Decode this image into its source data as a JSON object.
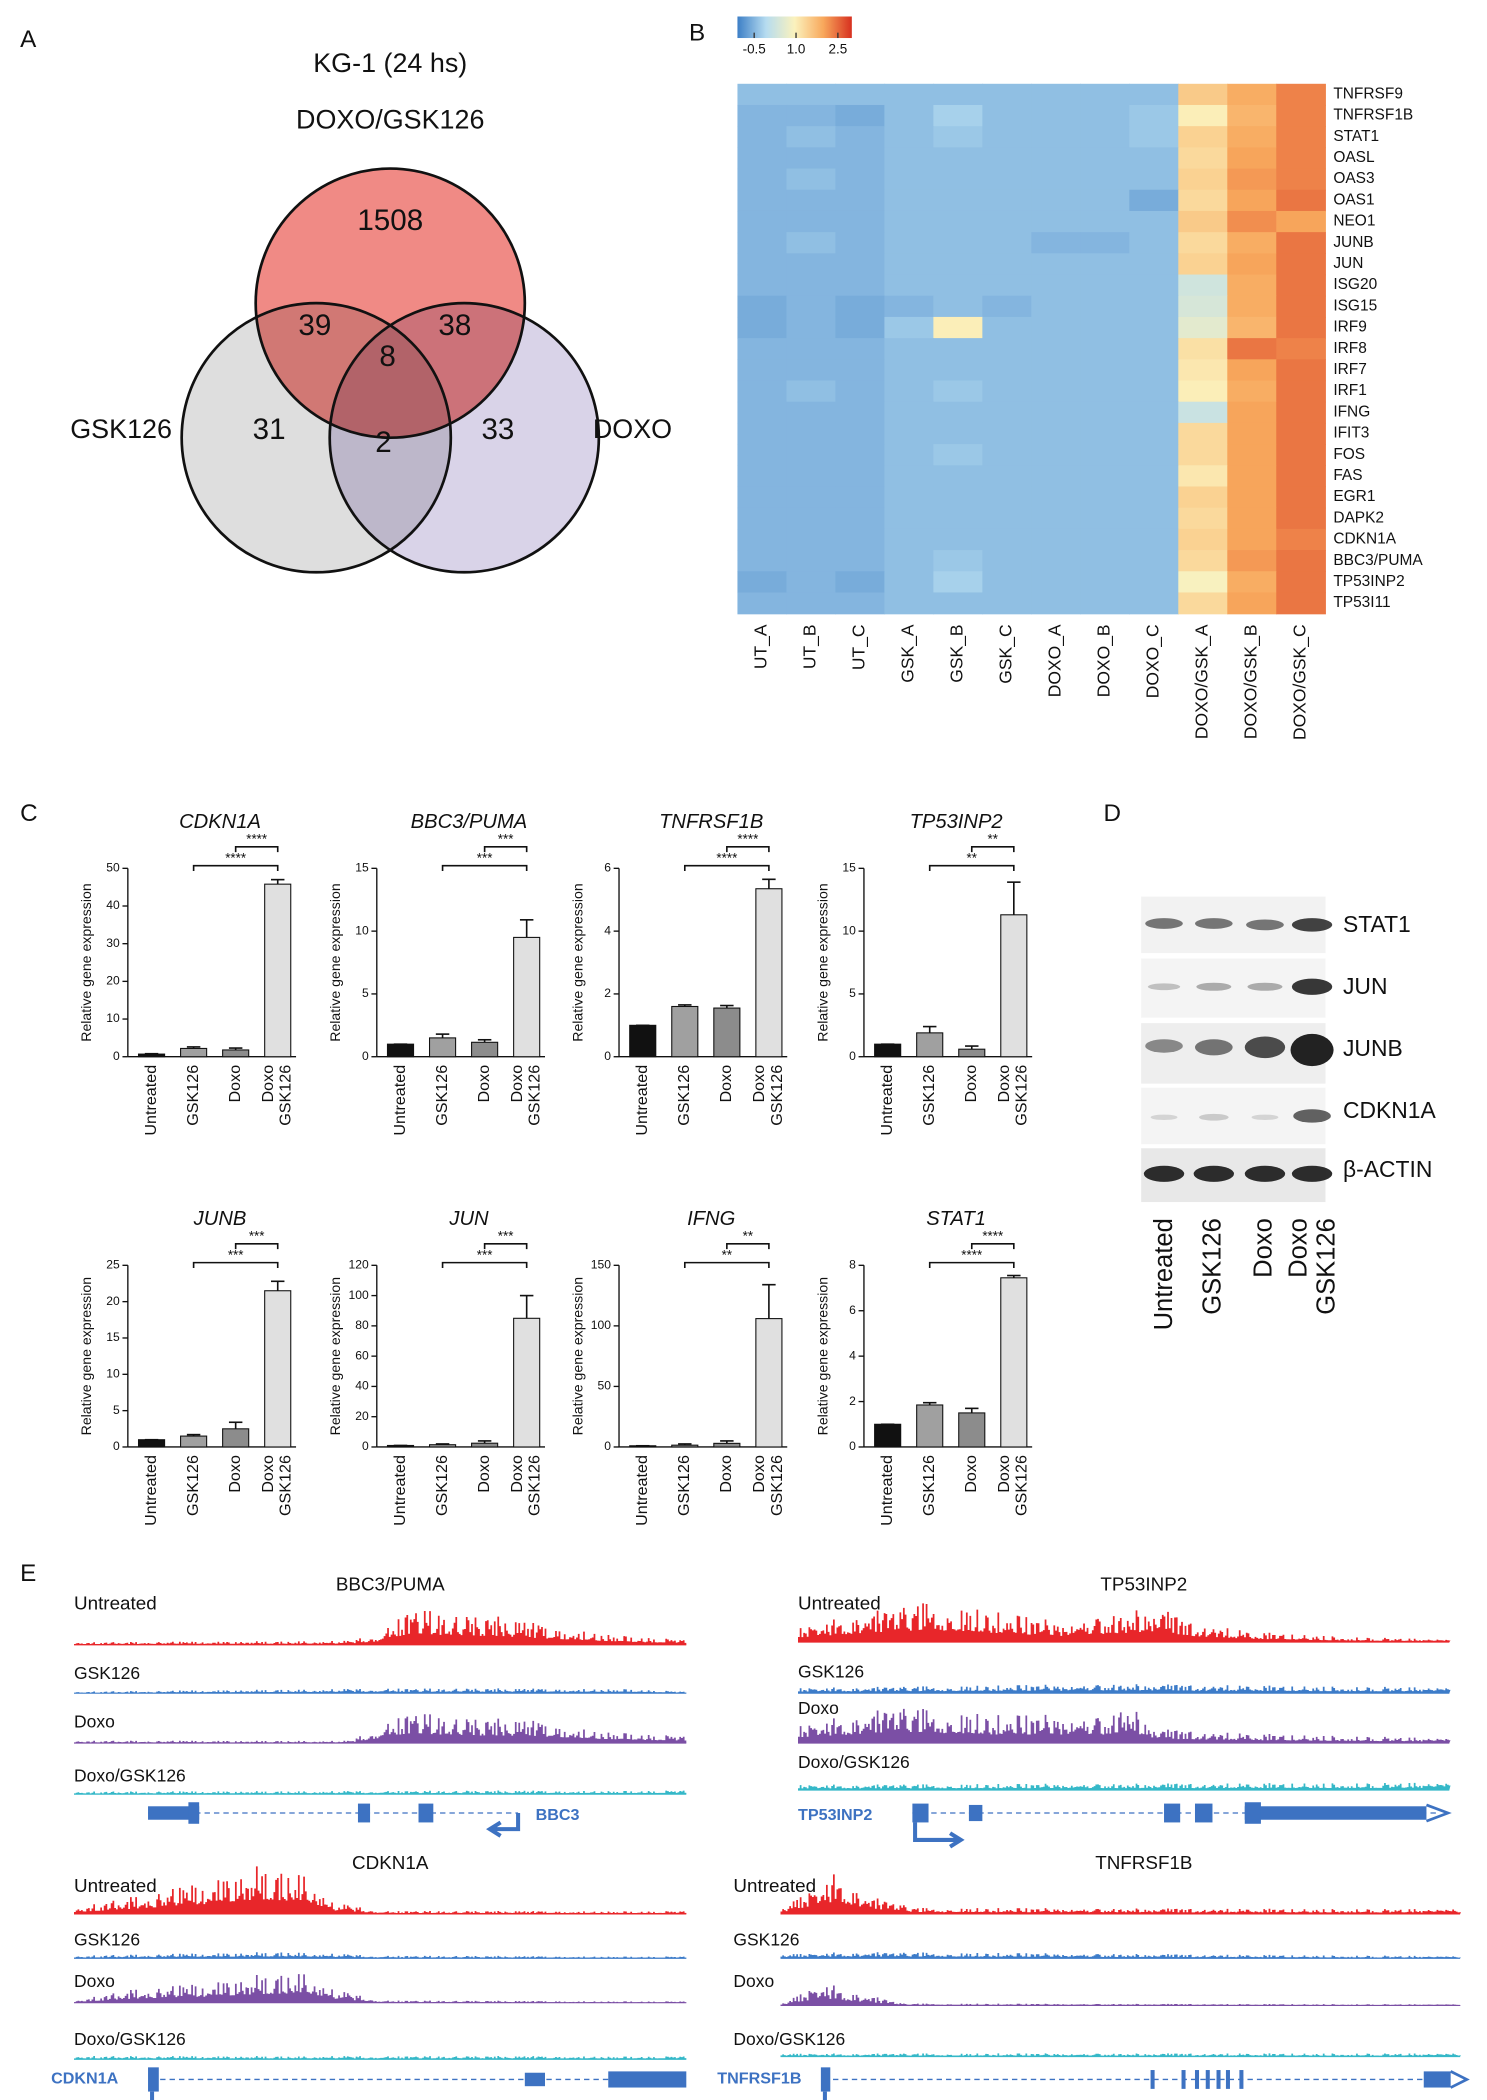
{
  "panel_labels": [
    "A",
    "B",
    "C",
    "D",
    "E"
  ],
  "chart_data": [
    {
      "type": "venn",
      "title": "KG-1 (24 hs)",
      "sets": [
        "DOXO/GSK126",
        "GSK126",
        "DOXO"
      ],
      "colors": [
        "#f08a85",
        "#dedede",
        "#d9d3e8"
      ],
      "regions": [
        {
          "sets": [
            0
          ],
          "value": 1508
        },
        {
          "sets": [
            0,
            1
          ],
          "value": 39
        },
        {
          "sets": [
            0,
            2
          ],
          "value": 38
        },
        {
          "sets": [
            0,
            1,
            2
          ],
          "value": 8
        },
        {
          "sets": [
            1
          ],
          "value": 31
        },
        {
          "sets": [
            1,
            2
          ],
          "value": 2
        },
        {
          "sets": [
            2
          ],
          "value": 33
        }
      ]
    },
    {
      "type": "heatmap",
      "columns": [
        "UT_A",
        "UT_B",
        "UT_C",
        "GSK_A",
        "GSK_B",
        "GSK_C",
        "DOXO_A",
        "DOXO_B",
        "DOXO_C",
        "DOXO/GSK_A",
        "DOXO/GSK_B",
        "DOXO/GSK_C"
      ],
      "rows": [
        "TNFRSF9",
        "TNFRSF1B",
        "STAT1",
        "OASL",
        "OAS3",
        "OAS1",
        "NEO1",
        "JUNB",
        "JUN",
        "ISG20",
        "ISG15",
        "IRF9",
        "IRF8",
        "IRF7",
        "IRF1",
        "IFNG",
        "IFIT3",
        "FOS",
        "FAS",
        "EGR1",
        "DAPK2",
        "CDKN1A",
        "BBC3/PUMA",
        "TP53INP2",
        "TP53I11"
      ],
      "row_label_colors": [
        "#111111",
        "#e8202a",
        "#111111",
        "#111111",
        "#111111",
        "#111111",
        "#e8202a",
        "#e8202a",
        "#e8202a",
        "#111111",
        "#111111",
        "#111111",
        "#111111",
        "#111111",
        "#111111",
        "#111111",
        "#111111",
        "#e8202a",
        "#111111",
        "#111111",
        "#e8202a",
        "#e8202a",
        "#e8202a",
        "#e8202a",
        "#e8202a"
      ],
      "values": [
        [
          -0.4,
          -0.4,
          -0.4,
          -0.4,
          -0.4,
          -0.4,
          -0.4,
          -0.4,
          -0.4,
          1.5,
          1.9,
          2.3
        ],
        [
          -0.5,
          -0.5,
          -0.6,
          -0.4,
          -0.2,
          -0.4,
          -0.4,
          -0.4,
          -0.3,
          1.0,
          1.8,
          2.3
        ],
        [
          -0.5,
          -0.4,
          -0.5,
          -0.4,
          -0.3,
          -0.4,
          -0.4,
          -0.4,
          -0.3,
          1.4,
          1.9,
          2.3
        ],
        [
          -0.5,
          -0.5,
          -0.5,
          -0.4,
          -0.4,
          -0.4,
          -0.4,
          -0.4,
          -0.4,
          1.3,
          2.0,
          2.3
        ],
        [
          -0.5,
          -0.4,
          -0.5,
          -0.4,
          -0.4,
          -0.4,
          -0.4,
          -0.4,
          -0.4,
          1.4,
          2.1,
          2.3
        ],
        [
          -0.5,
          -0.5,
          -0.5,
          -0.4,
          -0.4,
          -0.4,
          -0.4,
          -0.4,
          -0.6,
          1.3,
          2.0,
          2.4
        ],
        [
          -0.5,
          -0.5,
          -0.5,
          -0.4,
          -0.4,
          -0.4,
          -0.4,
          -0.4,
          -0.4,
          1.5,
          2.2,
          2.0
        ],
        [
          -0.5,
          -0.4,
          -0.5,
          -0.4,
          -0.4,
          -0.4,
          -0.5,
          -0.5,
          -0.4,
          1.3,
          1.9,
          2.4
        ],
        [
          -0.5,
          -0.5,
          -0.5,
          -0.4,
          -0.4,
          -0.4,
          -0.4,
          -0.4,
          -0.4,
          1.4,
          2.0,
          2.4
        ],
        [
          -0.5,
          -0.5,
          -0.5,
          -0.4,
          -0.4,
          -0.4,
          -0.4,
          -0.4,
          -0.4,
          0.3,
          1.9,
          2.4
        ],
        [
          -0.6,
          -0.5,
          -0.6,
          -0.5,
          -0.4,
          -0.5,
          -0.4,
          -0.4,
          -0.4,
          0.4,
          1.9,
          2.4
        ],
        [
          -0.6,
          -0.5,
          -0.6,
          -0.3,
          1.0,
          -0.4,
          -0.4,
          -0.4,
          -0.4,
          0.6,
          1.8,
          2.4
        ],
        [
          -0.5,
          -0.5,
          -0.5,
          -0.4,
          -0.4,
          -0.4,
          -0.4,
          -0.4,
          -0.4,
          1.2,
          2.4,
          2.3
        ],
        [
          -0.5,
          -0.5,
          -0.5,
          -0.4,
          -0.4,
          -0.4,
          -0.4,
          -0.4,
          -0.4,
          1.1,
          2.0,
          2.4
        ],
        [
          -0.5,
          -0.4,
          -0.5,
          -0.4,
          -0.3,
          -0.4,
          -0.4,
          -0.4,
          -0.4,
          1.0,
          1.9,
          2.4
        ],
        [
          -0.5,
          -0.5,
          -0.5,
          -0.4,
          -0.4,
          -0.4,
          -0.4,
          -0.4,
          -0.4,
          0.2,
          2.0,
          2.4
        ],
        [
          -0.5,
          -0.5,
          -0.5,
          -0.4,
          -0.4,
          -0.4,
          -0.4,
          -0.4,
          -0.4,
          1.3,
          2.0,
          2.4
        ],
        [
          -0.5,
          -0.5,
          -0.5,
          -0.4,
          -0.3,
          -0.4,
          -0.4,
          -0.4,
          -0.4,
          1.3,
          2.0,
          2.4
        ],
        [
          -0.5,
          -0.5,
          -0.5,
          -0.4,
          -0.4,
          -0.4,
          -0.4,
          -0.4,
          -0.4,
          1.1,
          2.0,
          2.4
        ],
        [
          -0.5,
          -0.5,
          -0.5,
          -0.4,
          -0.4,
          -0.4,
          -0.4,
          -0.4,
          -0.4,
          1.4,
          2.0,
          2.4
        ],
        [
          -0.5,
          -0.5,
          -0.5,
          -0.4,
          -0.4,
          -0.4,
          -0.4,
          -0.4,
          -0.4,
          1.3,
          2.0,
          2.4
        ],
        [
          -0.5,
          -0.5,
          -0.5,
          -0.4,
          -0.4,
          -0.4,
          -0.4,
          -0.4,
          -0.4,
          1.4,
          2.0,
          2.3
        ],
        [
          -0.5,
          -0.5,
          -0.5,
          -0.4,
          -0.3,
          -0.4,
          -0.4,
          -0.4,
          -0.4,
          1.3,
          2.1,
          2.4
        ],
        [
          -0.6,
          -0.5,
          -0.6,
          -0.4,
          -0.2,
          -0.4,
          -0.4,
          -0.4,
          -0.4,
          0.9,
          1.9,
          2.4
        ],
        [
          -0.5,
          -0.5,
          -0.5,
          -0.4,
          -0.4,
          -0.4,
          -0.4,
          -0.4,
          -0.4,
          1.3,
          2.0,
          2.4
        ]
      ],
      "clim": [
        -1.1,
        3.0
      ],
      "colorbar_ticks": [
        -0.5,
        {
          "value": 1,
          "label": "1.0"
        },
        2.5
      ],
      "colormap": [
        "#3d7fc6",
        "#b6dcf0",
        "#fbf2bd",
        "#f8a85c",
        "#d7301f"
      ]
    },
    {
      "type": "bar",
      "title": "CDKN1A",
      "title_color": "#e8202a",
      "ylabel": "Relative gene expression",
      "categories": [
        "Untreated",
        "GSK126",
        "Doxo",
        "Doxo\nGSK126"
      ],
      "colors": [
        "#111111",
        "#a0a0a0",
        "#8c8c8c",
        "#e0e0e0"
      ],
      "values": [
        0.7,
        2.2,
        1.8,
        45.8
      ],
      "errors": [
        0.1,
        0.4,
        0.5,
        1.2
      ],
      "ylim": [
        0,
        50
      ],
      "yticks": [
        0,
        10,
        20,
        30,
        40,
        50
      ],
      "brackets": [
        {
          "from": 1,
          "to": 3,
          "label": "****"
        },
        {
          "from": 2,
          "to": 3,
          "label": "****"
        }
      ]
    },
    {
      "type": "bar",
      "title": "BBC3/PUMA",
      "title_color": "#e8202a",
      "ylabel": "Relative gene expression",
      "categories": [
        "Untreated",
        "GSK126",
        "Doxo",
        "Doxo\nGSK126"
      ],
      "colors": [
        "#111111",
        "#a0a0a0",
        "#8c8c8c",
        "#e0e0e0"
      ],
      "values": [
        1,
        1.5,
        1.15,
        9.5
      ],
      "errors": [
        0,
        0.3,
        0.2,
        1.4
      ],
      "ylim": [
        0,
        15
      ],
      "yticks": [
        0,
        5,
        10,
        15
      ],
      "brackets": [
        {
          "from": 1,
          "to": 3,
          "label": "***"
        },
        {
          "from": 2,
          "to": 3,
          "label": "***"
        }
      ]
    },
    {
      "type": "bar",
      "title": "TNFRSF1B",
      "title_color": "#e8202a",
      "ylabel": "Relative gene expression",
      "categories": [
        "Untreated",
        "GSK126",
        "Doxo",
        "Doxo\nGSK126"
      ],
      "colors": [
        "#111111",
        "#a0a0a0",
        "#8c8c8c",
        "#e0e0e0"
      ],
      "values": [
        1,
        1.6,
        1.55,
        5.35
      ],
      "errors": [
        0,
        0.05,
        0.08,
        0.3
      ],
      "ylim": [
        0,
        6
      ],
      "yticks": [
        0,
        2,
        4,
        6
      ],
      "brackets": [
        {
          "from": 1,
          "to": 3,
          "label": "****"
        },
        {
          "from": 2,
          "to": 3,
          "label": "****"
        }
      ]
    },
    {
      "type": "bar",
      "title": "TP53INP2",
      "title_color": "#e8202a",
      "ylabel": "Relative gene expression",
      "categories": [
        "Untreated",
        "GSK126",
        "Doxo",
        "Doxo\nGSK126"
      ],
      "colors": [
        "#111111",
        "#a0a0a0",
        "#8c8c8c",
        "#e0e0e0"
      ],
      "values": [
        1,
        1.9,
        0.6,
        11.3
      ],
      "errors": [
        0,
        0.5,
        0.25,
        2.6
      ],
      "ylim": [
        0,
        15
      ],
      "yticks": [
        0,
        5,
        10,
        15
      ],
      "brackets": [
        {
          "from": 1,
          "to": 3,
          "label": "**"
        },
        {
          "from": 2,
          "to": 3,
          "label": "**"
        }
      ]
    },
    {
      "type": "bar",
      "title": "JUNB",
      "title_color": "#e8202a",
      "ylabel": "Relative gene expression",
      "categories": [
        "Untreated",
        "GSK126",
        "Doxo",
        "Doxo\nGSK126"
      ],
      "colors": [
        "#111111",
        "#a0a0a0",
        "#8c8c8c",
        "#e0e0e0"
      ],
      "values": [
        1,
        1.5,
        2.5,
        21.5
      ],
      "errors": [
        0,
        0.2,
        0.9,
        1.3
      ],
      "ylim": [
        0,
        25
      ],
      "yticks": [
        0,
        5,
        10,
        15,
        20,
        25
      ],
      "brackets": [
        {
          "from": 1,
          "to": 3,
          "label": "***"
        },
        {
          "from": 2,
          "to": 3,
          "label": "***"
        }
      ]
    },
    {
      "type": "bar",
      "title": "JUN",
      "title_color": "#e8202a",
      "ylabel": "Relative gene expression",
      "categories": [
        "Untreated",
        "GSK126",
        "Doxo",
        "Doxo\nGSK126"
      ],
      "colors": [
        "#111111",
        "#a0a0a0",
        "#8c8c8c",
        "#e0e0e0"
      ],
      "values": [
        1,
        1.5,
        2.5,
        85
      ],
      "errors": [
        0,
        0.5,
        1.5,
        15
      ],
      "ylim": [
        0,
        120
      ],
      "yticks": [
        0,
        20,
        40,
        60,
        80,
        100,
        120
      ],
      "brackets": [
        {
          "from": 1,
          "to": 3,
          "label": "***"
        },
        {
          "from": 2,
          "to": 3,
          "label": "***"
        }
      ]
    },
    {
      "type": "bar",
      "title": "IFNG",
      "title_color": "#111111",
      "ylabel": "Relative gene expression",
      "categories": [
        "Untreated",
        "GSK126",
        "Doxo",
        "Doxo\nGSK126"
      ],
      "colors": [
        "#111111",
        "#a0a0a0",
        "#8c8c8c",
        "#e0e0e0"
      ],
      "values": [
        1,
        1.5,
        3,
        106
      ],
      "errors": [
        0,
        1,
        2,
        28
      ],
      "ylim": [
        0,
        150
      ],
      "yticks": [
        0,
        50,
        100,
        150
      ],
      "brackets": [
        {
          "from": 1,
          "to": 3,
          "label": "**"
        },
        {
          "from": 2,
          "to": 3,
          "label": "**"
        }
      ]
    },
    {
      "type": "bar",
      "title": "STAT1",
      "title_color": "#111111",
      "ylabel": "Relative gene expression",
      "categories": [
        "Untreated",
        "GSK126",
        "Doxo",
        "Doxo\nGSK126"
      ],
      "colors": [
        "#111111",
        "#a0a0a0",
        "#8c8c8c",
        "#e0e0e0"
      ],
      "values": [
        1,
        1.85,
        1.5,
        7.45
      ],
      "errors": [
        0,
        0.1,
        0.2,
        0.1
      ],
      "ylim": [
        0,
        8
      ],
      "yticks": [
        0,
        2,
        4,
        6,
        8
      ],
      "brackets": [
        {
          "from": 1,
          "to": 3,
          "label": "****"
        },
        {
          "from": 2,
          "to": 3,
          "label": "****"
        }
      ]
    }
  ],
  "western_blot": {
    "proteins": [
      "STAT1",
      "JUN",
      "JUNB",
      "CDKN1A",
      "β-ACTIN"
    ],
    "lanes": [
      "Untreated",
      "GSK126",
      "Doxo",
      "Doxo\nGSK126"
    ]
  },
  "genome_tracks": [
    {
      "title": "BBC3/PUMA",
      "tracks": [
        "Untreated",
        "GSK126",
        "Doxo",
        "Doxo/GSK126"
      ],
      "gene": "BBC3"
    },
    {
      "title": "TP53INP2",
      "tracks": [
        "Untreated",
        "GSK126",
        "Doxo",
        "Doxo/GSK126"
      ],
      "gene": "TP53INP2"
    },
    {
      "title": "CDKN1A",
      "tracks": [
        "Untreated",
        "GSK126",
        "Doxo",
        "Doxo/GSK126"
      ],
      "gene": "CDKN1A"
    },
    {
      "title": "TNFRSF1B",
      "tracks": [
        "Untreated",
        "GSK126",
        "Doxo",
        "Doxo/GSK126"
      ],
      "gene": "TNFRSF1B"
    }
  ]
}
